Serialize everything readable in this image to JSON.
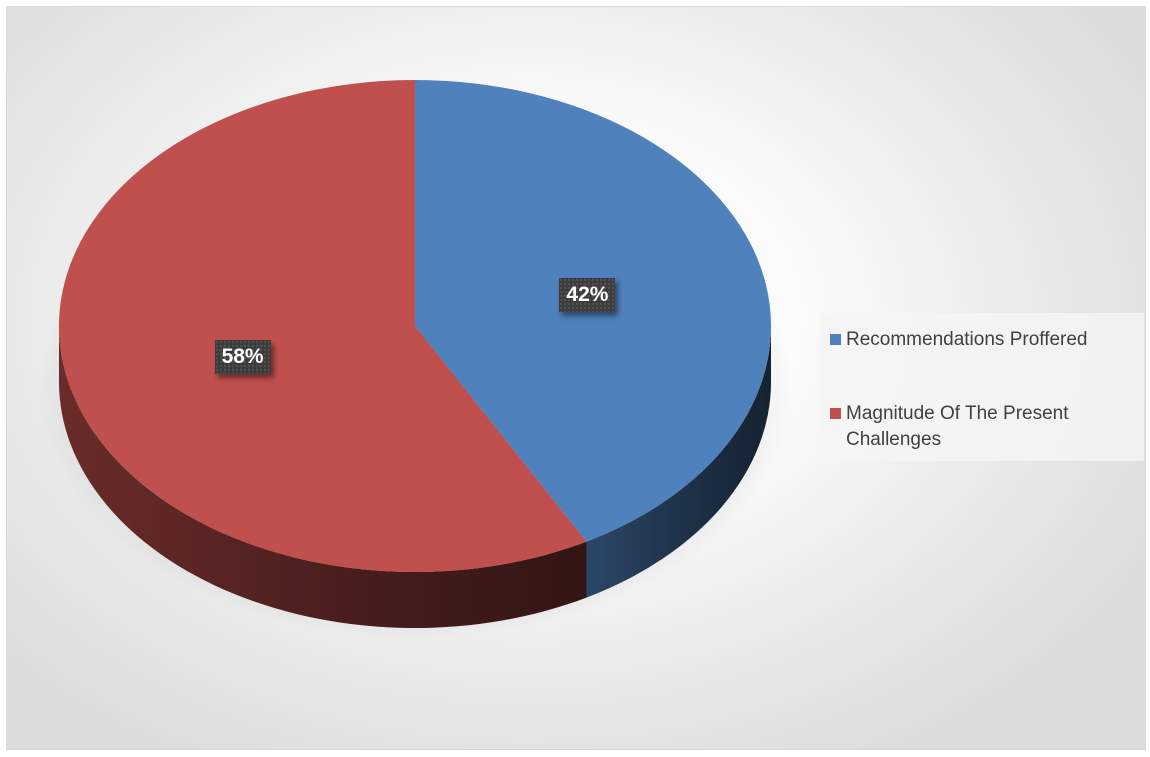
{
  "chart_data": {
    "type": "pie",
    "title": "",
    "categories": [
      "Recommendations Proffered",
      "Magnitude Of The Present Challenges"
    ],
    "values": [
      42,
      58
    ],
    "data_labels": [
      "42%",
      "58%"
    ],
    "colors": [
      "#4f81bd",
      "#c0504d"
    ],
    "legend": {
      "position": "right",
      "entries": [
        "Recommendations Proffered",
        "Magnitude Of The Present Challenges"
      ]
    },
    "style": "3d"
  }
}
